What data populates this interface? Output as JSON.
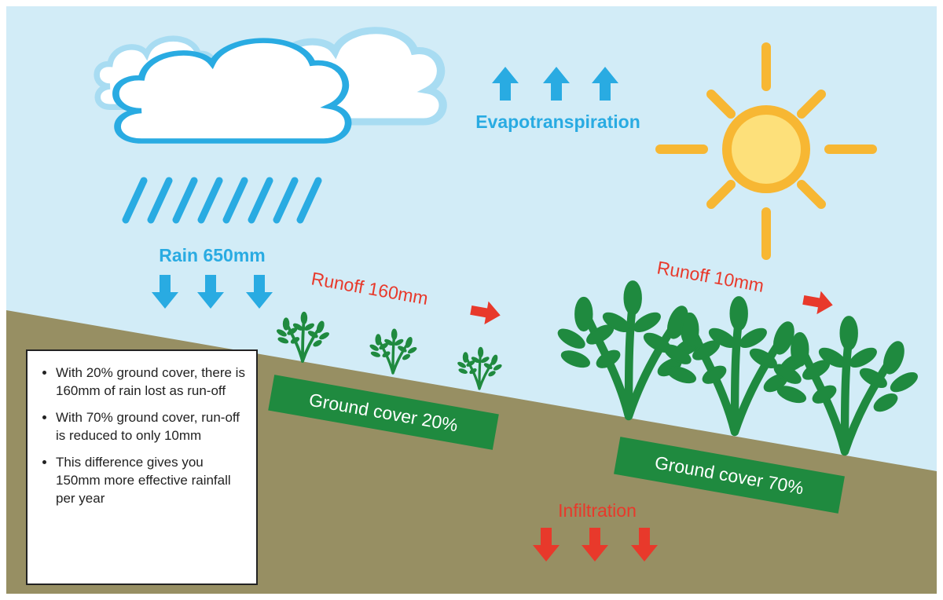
{
  "labels": {
    "rain": "Rain 650mm",
    "evapotranspiration": "Evapotranspiration",
    "runoff_low_cover": "Runoff 160mm",
    "runoff_high_cover": "Runoff 10mm",
    "infiltration": "Infiltration"
  },
  "ground_cover": {
    "low": "Ground cover 20%",
    "high": "Ground cover 70%"
  },
  "notes": {
    "items": [
      "With 20% ground cover, there is 160mm of rain lost as run-off",
      "With 70% ground cover, run-off is reduced to only 10mm",
      "This difference gives you 150mm more effective rainfall per year"
    ]
  }
}
